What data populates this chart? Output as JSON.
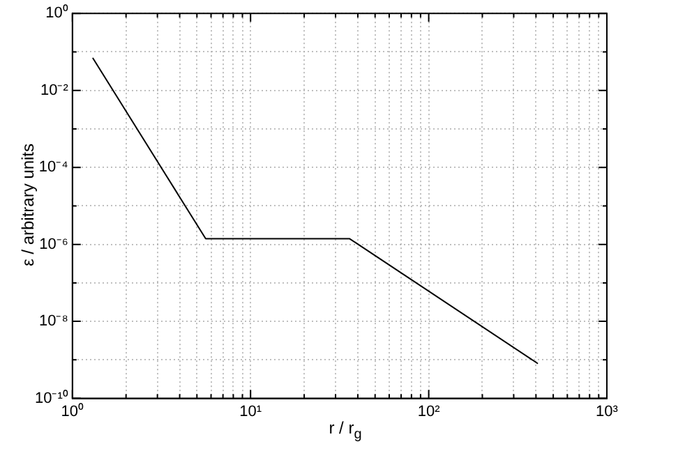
{
  "chart_data": {
    "type": "line",
    "xlabel": "r / r$_{g}$",
    "ylabel": "ε / arbitrary units",
    "log": "xy",
    "grid": true,
    "marker": "none",
    "line_style": "solid",
    "x": [
      1.3,
      5.6,
      36,
      410
    ],
    "series": [
      {
        "color": "#000000",
        "values": [
          0.07,
          1.4e-06,
          1.4e-06,
          8e-10
        ]
      }
    ],
    "xlim": [
      1,
      1000
    ],
    "ylim": [
      1e-10,
      1
    ],
    "xticks": [
      {
        "value": 1,
        "label": "10⁰"
      },
      {
        "value": 2,
        "label": null
      },
      {
        "value": 3,
        "label": null
      },
      {
        "value": 4,
        "label": null
      },
      {
        "value": 5,
        "label": null
      },
      {
        "value": 6,
        "label": null
      },
      {
        "value": 7,
        "label": null
      },
      {
        "value": 8,
        "label": null
      },
      {
        "value": 9,
        "label": null
      },
      {
        "value": 10,
        "label": "10¹"
      },
      {
        "value": 20,
        "label": null
      },
      {
        "value": 30,
        "label": null
      },
      {
        "value": 40,
        "label": null
      },
      {
        "value": 50,
        "label": null
      },
      {
        "value": 60,
        "label": null
      },
      {
        "value": 70,
        "label": null
      },
      {
        "value": 80,
        "label": null
      },
      {
        "value": 90,
        "label": null
      },
      {
        "value": 100,
        "label": "10²"
      },
      {
        "value": 200,
        "label": null
      },
      {
        "value": 300,
        "label": null
      },
      {
        "value": 400,
        "label": null
      },
      {
        "value": 500,
        "label": null
      },
      {
        "value": 600,
        "label": null
      },
      {
        "value": 700,
        "label": null
      },
      {
        "value": 800,
        "label": null
      },
      {
        "value": 900,
        "label": null
      },
      {
        "value": 1000,
        "label": "10³"
      }
    ],
    "yticks": [
      {
        "value": 1e-10,
        "label": "10⁻¹⁰"
      },
      {
        "value": 1e-09,
        "label": null
      },
      {
        "value": 1e-08,
        "label": "10⁻⁸"
      },
      {
        "value": 1e-07,
        "label": null
      },
      {
        "value": 1e-06,
        "label": "10⁻⁶"
      },
      {
        "value": 1e-05,
        "label": null
      },
      {
        "value": 0.0001,
        "label": "10⁻⁴"
      },
      {
        "value": 0.001,
        "label": null
      },
      {
        "value": 0.01,
        "label": "10⁻²"
      },
      {
        "value": 0.1,
        "label": null
      },
      {
        "value": 1,
        "label": "10⁰"
      }
    ]
  }
}
